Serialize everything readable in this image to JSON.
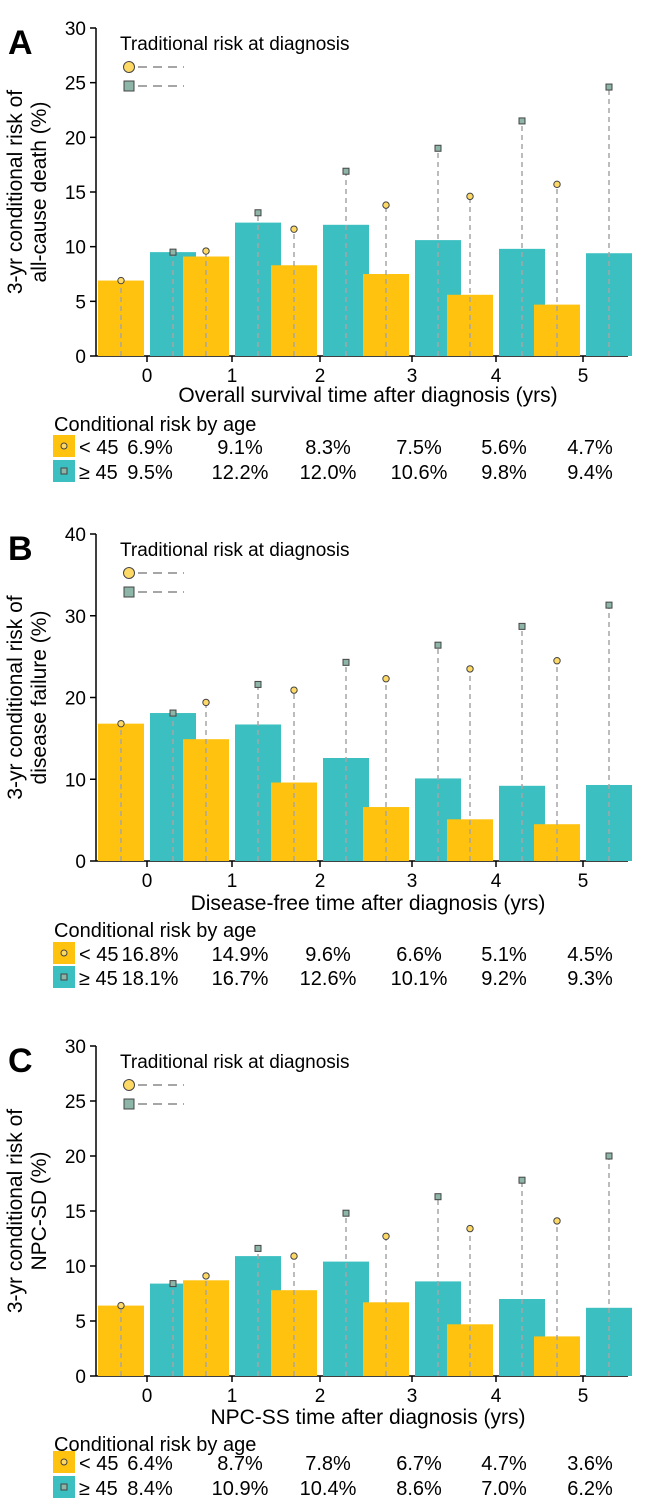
{
  "colors": {
    "young": "#FFC20E",
    "old": "#3BBFC1",
    "trad_old_marker": "#8DB5A8",
    "trad_young_marker": "#FFD966",
    "dashed": "#A6A6A6"
  },
  "legend_title": "Traditional risk at diagnosis",
  "table_title": "Conditional risk by age",
  "group_labels": [
    "< 45",
    "≥ 45"
  ],
  "chart_data": [
    {
      "panel": "A",
      "type": "bar",
      "x": [
        0,
        1,
        2,
        3,
        4,
        5
      ],
      "xlabel": "Overall survival time after diagnosis (yrs)",
      "ylabel_lines": [
        "3-yr conditional risk of",
        "all-cause death (%)"
      ],
      "ylim": [
        0,
        30
      ],
      "yticks": [
        0,
        5,
        10,
        15,
        20,
        25,
        30
      ],
      "series": [
        {
          "name": "< 45",
          "values": [
            6.9,
            9.1,
            8.3,
            7.5,
            5.6,
            4.7
          ],
          "labels": [
            "6.9%",
            "9.1%",
            "8.3%",
            "7.5%",
            "5.6%",
            "4.7%"
          ]
        },
        {
          "name": "≥ 45",
          "values": [
            9.5,
            12.2,
            12.0,
            10.6,
            9.8,
            9.4
          ],
          "labels": [
            "9.5%",
            "12.2%",
            "12.0%",
            "10.6%",
            "9.8%",
            "9.4%"
          ]
        }
      ],
      "traditional": [
        {
          "values": [
            6.9,
            9.6,
            11.6,
            13.8,
            14.6,
            15.7
          ]
        },
        {
          "values": [
            9.5,
            13.1,
            16.9,
            19.0,
            21.5,
            24.6
          ]
        }
      ]
    },
    {
      "panel": "B",
      "type": "bar",
      "x": [
        0,
        1,
        2,
        3,
        4,
        5
      ],
      "xlabel": "Disease-free time after diagnosis (yrs)",
      "ylabel_lines": [
        "3-yr conditional risk of",
        "disease failure (%)"
      ],
      "ylim": [
        0,
        40
      ],
      "yticks": [
        0,
        10,
        20,
        30,
        40
      ],
      "series": [
        {
          "name": "< 45",
          "values": [
            16.8,
            14.9,
            9.6,
            6.6,
            5.1,
            4.5
          ],
          "labels": [
            "16.8%",
            "14.9%",
            "9.6%",
            "6.6%",
            "5.1%",
            "4.5%"
          ]
        },
        {
          "name": "≥ 45",
          "values": [
            18.1,
            16.7,
            12.6,
            10.1,
            9.2,
            9.3
          ],
          "labels": [
            "18.1%",
            "16.7%",
            "12.6%",
            "10.1%",
            "9.2%",
            "9.3%"
          ]
        }
      ],
      "traditional": [
        {
          "values": [
            16.8,
            19.4,
            20.9,
            22.3,
            23.5,
            24.5
          ]
        },
        {
          "values": [
            18.1,
            21.6,
            24.3,
            26.4,
            28.7,
            31.3
          ]
        }
      ]
    },
    {
      "panel": "C",
      "type": "bar",
      "x": [
        0,
        1,
        2,
        3,
        4,
        5
      ],
      "xlabel": "NPC-SS time after diagnosis (yrs)",
      "ylabel_lines": [
        "3-yr conditional risk of",
        "NPC-SD (%)"
      ],
      "ylim": [
        0,
        30
      ],
      "yticks": [
        0,
        5,
        10,
        15,
        20,
        25,
        30
      ],
      "series": [
        {
          "name": "< 45",
          "values": [
            6.4,
            8.7,
            7.8,
            6.7,
            4.7,
            3.6
          ],
          "labels": [
            "6.4%",
            "8.7%",
            "7.8%",
            "6.7%",
            "4.7%",
            "3.6%"
          ]
        },
        {
          "name": "≥ 45",
          "values": [
            8.4,
            10.9,
            10.4,
            8.6,
            7.0,
            6.2
          ],
          "labels": [
            "8.4%",
            "10.9%",
            "10.4%",
            "8.6%",
            "7.0%",
            "6.2%"
          ]
        }
      ],
      "traditional": [
        {
          "values": [
            6.4,
            9.1,
            10.9,
            12.7,
            13.4,
            14.1
          ]
        },
        {
          "values": [
            8.4,
            11.6,
            14.8,
            16.3,
            17.8,
            20.0
          ]
        }
      ]
    }
  ]
}
